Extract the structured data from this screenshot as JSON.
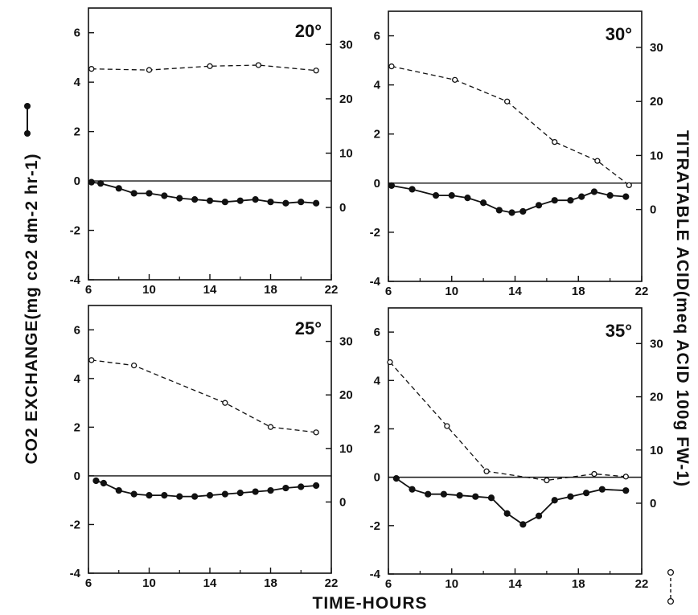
{
  "figure": {
    "x_axis_title": "TIME-HOURS",
    "left_axis_title": "CO2 EXCHANGE(mg co2 dm-2 hr-1)",
    "right_axis_title": "TITRATABLE ACID(meq ACID 100g FW-1)"
  },
  "chart_data": [
    {
      "type": "line",
      "panel_label": "20°",
      "xlim": [
        6,
        22
      ],
      "x_ticks": [
        "6",
        "10",
        "14",
        "18",
        "22"
      ],
      "ylim": [
        -4,
        7
      ],
      "y_ticks": [
        "6",
        "4",
        "2",
        "0",
        "-2",
        "-4"
      ],
      "y2lim": [
        -13.3,
        36.7
      ],
      "y2_ticks": [
        "30",
        "20",
        "10",
        "0"
      ],
      "series": [
        {
          "axis": "left",
          "style": "solid-filled",
          "x": [
            6.2,
            6.8,
            8,
            9,
            10,
            11,
            12,
            13,
            14,
            15,
            16,
            17,
            18,
            19,
            20,
            21
          ],
          "y": [
            -0.05,
            -0.1,
            -0.3,
            -0.5,
            -0.5,
            -0.6,
            -0.7,
            -0.75,
            -0.8,
            -0.85,
            -0.8,
            -0.75,
            -0.85,
            -0.9,
            -0.85,
            -0.9
          ]
        },
        {
          "axis": "right",
          "style": "dashed-open",
          "x": [
            6.2,
            10,
            14,
            17.2,
            21
          ],
          "y": [
            25.5,
            25.3,
            26.0,
            26.2,
            25.2
          ]
        }
      ]
    },
    {
      "type": "line",
      "panel_label": "30°",
      "xlim": [
        6,
        22
      ],
      "x_ticks": [
        "6",
        "10",
        "14",
        "18",
        "22"
      ],
      "ylim": [
        -4,
        7
      ],
      "y_ticks": [
        "6",
        "4",
        "2",
        "0",
        "-2",
        "-4"
      ],
      "y2lim": [
        -13.3,
        36.7
      ],
      "y2_ticks": [
        "30",
        "20",
        "10",
        "0"
      ],
      "series": [
        {
          "axis": "left",
          "style": "solid-filled",
          "x": [
            6.2,
            7.5,
            9,
            10,
            11,
            12,
            13,
            13.8,
            14.5,
            15.5,
            16.5,
            17.5,
            18.2,
            19,
            20,
            21
          ],
          "y": [
            -0.1,
            -0.25,
            -0.5,
            -0.5,
            -0.6,
            -0.8,
            -1.1,
            -1.2,
            -1.15,
            -0.9,
            -0.7,
            -0.7,
            -0.55,
            -0.35,
            -0.5,
            -0.55
          ]
        },
        {
          "axis": "right",
          "style": "dashed-open",
          "x": [
            6.2,
            10.2,
            13.5,
            16.5,
            19.2,
            21.2
          ],
          "y": [
            26.5,
            24.0,
            20.0,
            12.5,
            9.0,
            4.5
          ]
        }
      ]
    },
    {
      "type": "line",
      "panel_label": "25°",
      "xlim": [
        6,
        22
      ],
      "x_ticks": [
        "6",
        "10",
        "14",
        "18",
        "22"
      ],
      "ylim": [
        -4,
        7
      ],
      "y_ticks": [
        "6",
        "4",
        "2",
        "0",
        "-2",
        "-4"
      ],
      "y2lim": [
        -13.3,
        36.7
      ],
      "y2_ticks": [
        "30",
        "20",
        "10",
        "0"
      ],
      "series": [
        {
          "axis": "left",
          "style": "solid-filled",
          "x": [
            6.5,
            7,
            8,
            9,
            10,
            11,
            12,
            13,
            14,
            15,
            16,
            17,
            18,
            19,
            20,
            21
          ],
          "y": [
            -0.2,
            -0.3,
            -0.6,
            -0.75,
            -0.8,
            -0.8,
            -0.85,
            -0.85,
            -0.8,
            -0.75,
            -0.7,
            -0.65,
            -0.6,
            -0.5,
            -0.45,
            -0.4
          ]
        },
        {
          "axis": "right",
          "style": "dashed-open",
          "x": [
            6.2,
            9,
            15,
            18,
            21
          ],
          "y": [
            26.5,
            25.5,
            18.5,
            14.0,
            13.0
          ]
        }
      ]
    },
    {
      "type": "line",
      "panel_label": "35°",
      "xlim": [
        6,
        22
      ],
      "x_ticks": [
        "6",
        "10",
        "14",
        "18",
        "22"
      ],
      "ylim": [
        -4,
        7
      ],
      "y_ticks": [
        "6",
        "4",
        "2",
        "0",
        "-2",
        "-4"
      ],
      "y2lim": [
        -13.3,
        36.7
      ],
      "y2_ticks": [
        "30",
        "20",
        "10",
        "0"
      ],
      "series": [
        {
          "axis": "left",
          "style": "solid-filled",
          "x": [
            6.5,
            7.5,
            8.5,
            9.5,
            10.5,
            11.5,
            12.5,
            13.5,
            14.5,
            15.5,
            16.5,
            17.5,
            18.5,
            19.5,
            21
          ],
          "y": [
            -0.05,
            -0.5,
            -0.7,
            -0.7,
            -0.75,
            -0.8,
            -0.85,
            -1.5,
            -1.95,
            -1.6,
            -0.95,
            -0.8,
            -0.65,
            -0.5,
            -0.55
          ]
        },
        {
          "axis": "right",
          "style": "dashed-open",
          "x": [
            6.1,
            9.7,
            12.2,
            16,
            19,
            21
          ],
          "y": [
            26.5,
            14.5,
            6.0,
            4.3,
            5.5,
            5.0
          ]
        }
      ]
    }
  ]
}
